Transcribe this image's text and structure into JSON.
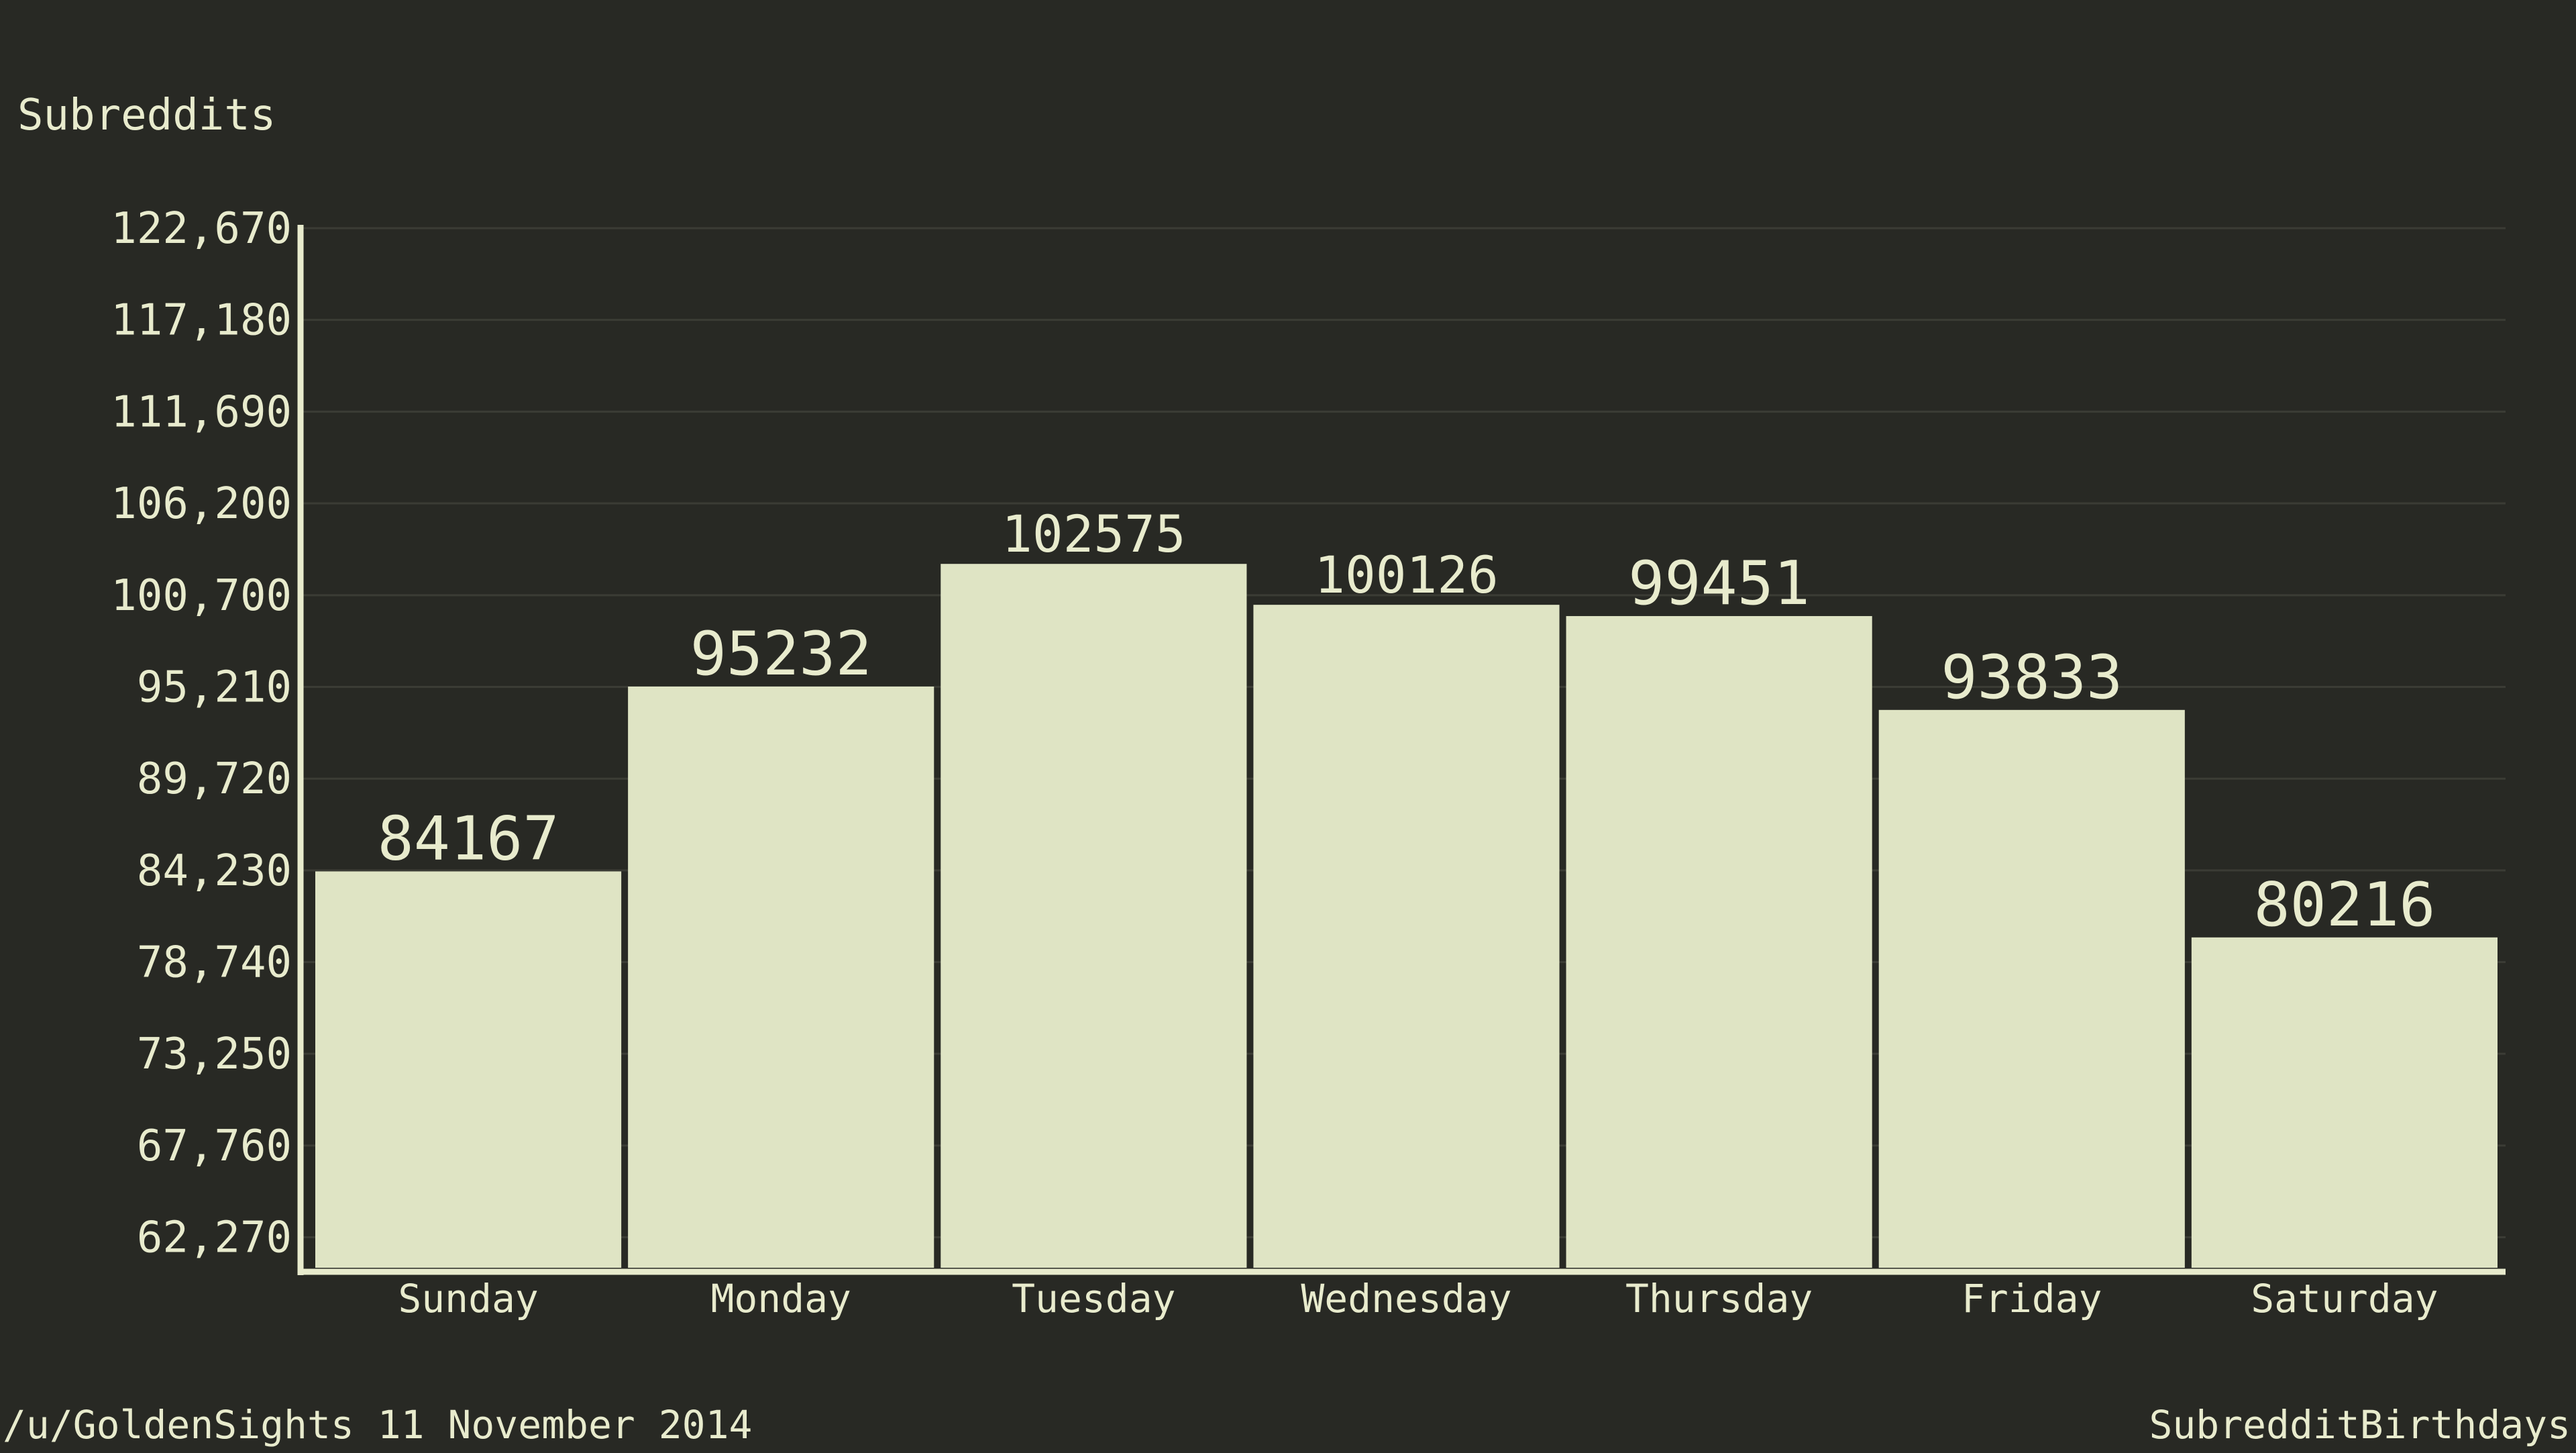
{
  "colors": {
    "background": "#282924",
    "bar": "#dfe4c4",
    "text": "#e8ebcd",
    "axis": "#e8ebcd",
    "grid": "#3b3c35"
  },
  "footer": {
    "left": "/u/GoldenSights 11 November 2014",
    "right": "SubredditBirthdays"
  },
  "chart_data": {
    "type": "bar",
    "ylabel": "Subreddits",
    "xlabel": "",
    "categories": [
      "Sunday",
      "Monday",
      "Tuesday",
      "Wednesday",
      "Thursday",
      "Friday",
      "Saturday"
    ],
    "values": [
      84167,
      95232,
      102575,
      100126,
      99451,
      93833,
      80216
    ],
    "data_labels": [
      "84167",
      "95232",
      "102575",
      "100126",
      "99451",
      "93833",
      "80216"
    ],
    "y_ticks": [
      62270,
      67760,
      73250,
      78740,
      84230,
      89720,
      95210,
      100700,
      106200,
      111690,
      117180,
      122670
    ],
    "y_tick_labels": [
      "62,270",
      "67,760",
      "73,250",
      "78,740",
      "84,230",
      "89,720",
      "95,210",
      "100,700",
      "106,200",
      "111,690",
      "117,180",
      "122,670"
    ],
    "ylim": [
      60200,
      122670
    ],
    "grid": true
  }
}
